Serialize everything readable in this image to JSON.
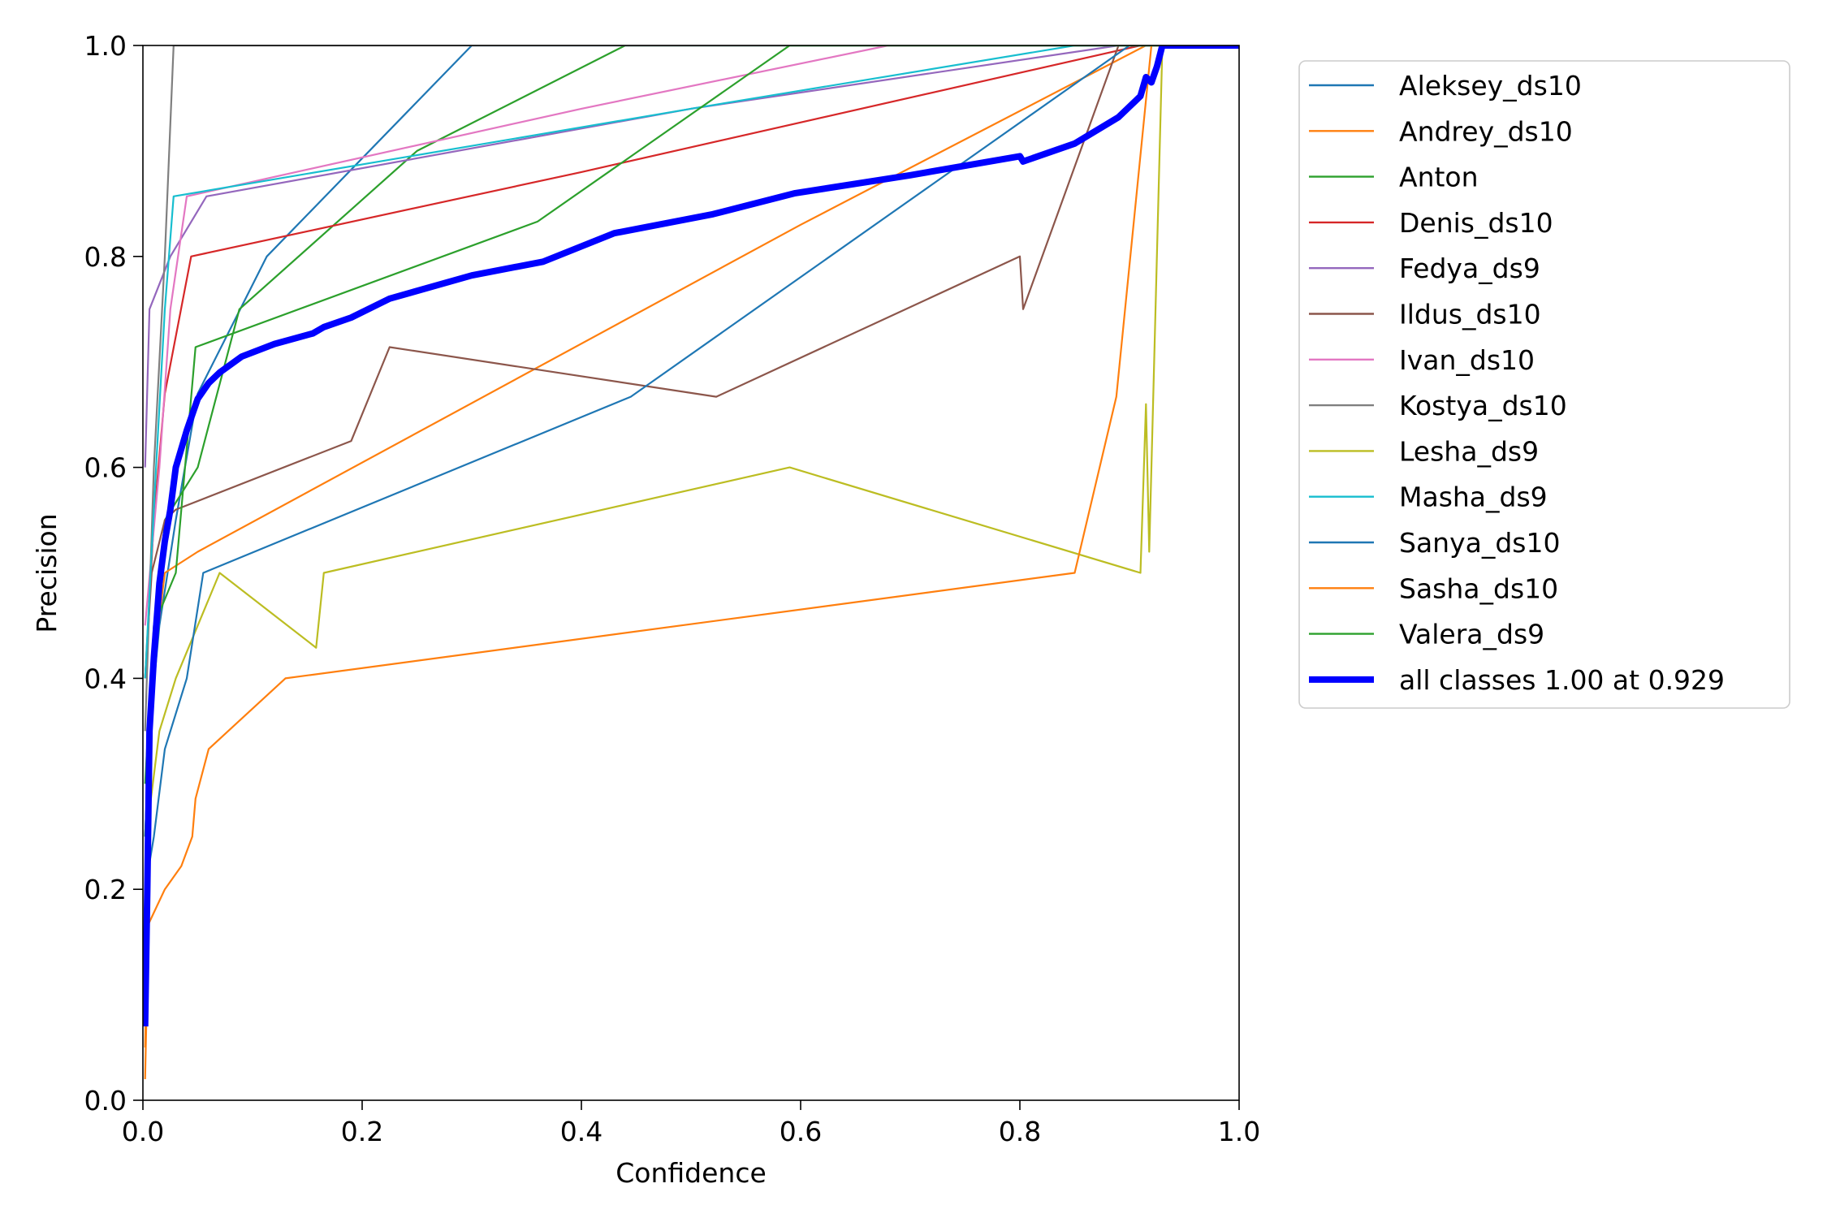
{
  "chart_data": {
    "type": "line",
    "title": "",
    "xlabel": "Confidence",
    "ylabel": "Precision",
    "xlim": [
      0.0,
      1.0
    ],
    "ylim": [
      0.0,
      1.0
    ],
    "xticks": [
      "0.0",
      "0.2",
      "0.4",
      "0.6",
      "0.8",
      "1.0"
    ],
    "yticks": [
      "0.0",
      "0.2",
      "0.4",
      "0.6",
      "0.8",
      "1.0"
    ],
    "grid": false,
    "legend_position": "outside-right",
    "series": [
      {
        "name": "Aleksey_ds10",
        "color": "#1f77b4",
        "points": [
          [
            0.002,
            0.25
          ],
          [
            0.006,
            0.35
          ],
          [
            0.015,
            0.45
          ],
          [
            0.03,
            0.55
          ],
          [
            0.05,
            0.67
          ],
          [
            0.113,
            0.8
          ],
          [
            0.3,
            1.0
          ],
          [
            1.0,
            1.0
          ]
        ]
      },
      {
        "name": "Andrey_ds10",
        "color": "#ff7f0e",
        "points": [
          [
            0.002,
            0.05
          ],
          [
            0.004,
            0.16
          ],
          [
            0.008,
            0.4
          ],
          [
            0.02,
            0.5
          ],
          [
            0.05,
            0.52
          ],
          [
            0.6,
            0.83
          ],
          [
            0.915,
            1.0
          ],
          [
            1.0,
            1.0
          ]
        ]
      },
      {
        "name": "Anton",
        "color": "#2ca02c",
        "points": [
          [
            0.002,
            0.25
          ],
          [
            0.008,
            0.4
          ],
          [
            0.02,
            0.55
          ],
          [
            0.05,
            0.6
          ],
          [
            0.088,
            0.75
          ],
          [
            0.25,
            0.9
          ],
          [
            0.44,
            1.0
          ],
          [
            1.0,
            1.0
          ]
        ]
      },
      {
        "name": "Denis_ds10",
        "color": "#d62728",
        "points": [
          [
            0.002,
            0.4
          ],
          [
            0.01,
            0.55
          ],
          [
            0.02,
            0.67
          ],
          [
            0.044,
            0.8
          ],
          [
            0.4,
            0.88
          ],
          [
            0.91,
            1.0
          ],
          [
            1.0,
            1.0
          ]
        ]
      },
      {
        "name": "Fedya_ds9",
        "color": "#9467bd",
        "points": [
          [
            0.002,
            0.6
          ],
          [
            0.006,
            0.75
          ],
          [
            0.025,
            0.8
          ],
          [
            0.058,
            0.857
          ],
          [
            0.5,
            0.94
          ],
          [
            0.89,
            1.0
          ],
          [
            1.0,
            1.0
          ]
        ]
      },
      {
        "name": "Ildus_ds10",
        "color": "#8c564b",
        "points": [
          [
            0.002,
            0.4
          ],
          [
            0.008,
            0.5
          ],
          [
            0.02,
            0.55
          ],
          [
            0.03,
            0.56
          ],
          [
            0.19,
            0.625
          ],
          [
            0.225,
            0.714
          ],
          [
            0.523,
            0.667
          ],
          [
            0.8,
            0.8
          ],
          [
            0.803,
            0.75
          ],
          [
            0.89,
            1.0
          ],
          [
            1.0,
            1.0
          ]
        ]
      },
      {
        "name": "Ivan_ds10",
        "color": "#e377c2",
        "points": [
          [
            0.002,
            0.45
          ],
          [
            0.015,
            0.6
          ],
          [
            0.025,
            0.75
          ],
          [
            0.04,
            0.857
          ],
          [
            0.4,
            0.94
          ],
          [
            0.68,
            1.0
          ],
          [
            1.0,
            1.0
          ]
        ]
      },
      {
        "name": "Kostya_ds10",
        "color": "#7f7f7f",
        "points": [
          [
            0.002,
            0.35
          ],
          [
            0.01,
            0.6
          ],
          [
            0.02,
            0.8
          ],
          [
            0.028,
            1.0
          ],
          [
            1.0,
            1.0
          ]
        ]
      },
      {
        "name": "Lesha_ds9",
        "color": "#bcbd22",
        "points": [
          [
            0.003,
            0.25
          ],
          [
            0.015,
            0.35
          ],
          [
            0.03,
            0.4
          ],
          [
            0.07,
            0.5
          ],
          [
            0.158,
            0.429
          ],
          [
            0.165,
            0.5
          ],
          [
            0.59,
            0.6
          ],
          [
            0.91,
            0.5
          ],
          [
            0.915,
            0.66
          ],
          [
            0.918,
            0.52
          ],
          [
            0.93,
            1.0
          ],
          [
            1.0,
            1.0
          ]
        ]
      },
      {
        "name": "Masha_ds9",
        "color": "#17becf",
        "points": [
          [
            0.002,
            0.4
          ],
          [
            0.012,
            0.6
          ],
          [
            0.02,
            0.75
          ],
          [
            0.028,
            0.857
          ],
          [
            0.5,
            0.94
          ],
          [
            0.85,
            1.0
          ],
          [
            1.0,
            1.0
          ]
        ]
      },
      {
        "name": "Sanya_ds10",
        "color": "#1f77b4",
        "points": [
          [
            0.002,
            0.2
          ],
          [
            0.01,
            0.25
          ],
          [
            0.02,
            0.333
          ],
          [
            0.04,
            0.4
          ],
          [
            0.055,
            0.5
          ],
          [
            0.445,
            0.667
          ],
          [
            0.9,
            1.0
          ],
          [
            1.0,
            1.0
          ]
        ]
      },
      {
        "name": "Sasha_ds10",
        "color": "#ff7f0e",
        "points": [
          [
            0.002,
            0.02
          ],
          [
            0.005,
            0.167
          ],
          [
            0.02,
            0.2
          ],
          [
            0.035,
            0.222
          ],
          [
            0.045,
            0.25
          ],
          [
            0.048,
            0.286
          ],
          [
            0.06,
            0.333
          ],
          [
            0.13,
            0.4
          ],
          [
            0.85,
            0.5
          ],
          [
            0.888,
            0.667
          ],
          [
            0.92,
            1.0
          ],
          [
            1.0,
            1.0
          ]
        ]
      },
      {
        "name": "Valera_ds9",
        "color": "#2ca02c",
        "points": [
          [
            0.002,
            0.3
          ],
          [
            0.01,
            0.45
          ],
          [
            0.03,
            0.5
          ],
          [
            0.048,
            0.714
          ],
          [
            0.36,
            0.833
          ],
          [
            0.59,
            1.0
          ],
          [
            1.0,
            1.0
          ]
        ]
      },
      {
        "name": "all classes 1.00 at 0.929",
        "color": "#0000ff",
        "bold": true,
        "points": [
          [
            0.002,
            0.07
          ],
          [
            0.004,
            0.2
          ],
          [
            0.006,
            0.35
          ],
          [
            0.01,
            0.42
          ],
          [
            0.015,
            0.49
          ],
          [
            0.02,
            0.53
          ],
          [
            0.025,
            0.56
          ],
          [
            0.03,
            0.6
          ],
          [
            0.04,
            0.635
          ],
          [
            0.05,
            0.665
          ],
          [
            0.06,
            0.68
          ],
          [
            0.07,
            0.69
          ],
          [
            0.09,
            0.705
          ],
          [
            0.12,
            0.717
          ],
          [
            0.155,
            0.727
          ],
          [
            0.165,
            0.733
          ],
          [
            0.19,
            0.742
          ],
          [
            0.225,
            0.76
          ],
          [
            0.3,
            0.782
          ],
          [
            0.365,
            0.795
          ],
          [
            0.43,
            0.822
          ],
          [
            0.52,
            0.84
          ],
          [
            0.595,
            0.86
          ],
          [
            0.7,
            0.877
          ],
          [
            0.8,
            0.895
          ],
          [
            0.803,
            0.89
          ],
          [
            0.85,
            0.907
          ],
          [
            0.89,
            0.932
          ],
          [
            0.91,
            0.952
          ],
          [
            0.915,
            0.97
          ],
          [
            0.92,
            0.965
          ],
          [
            0.925,
            0.98
          ],
          [
            0.93,
            1.0
          ],
          [
            1.0,
            1.0
          ]
        ]
      }
    ]
  }
}
